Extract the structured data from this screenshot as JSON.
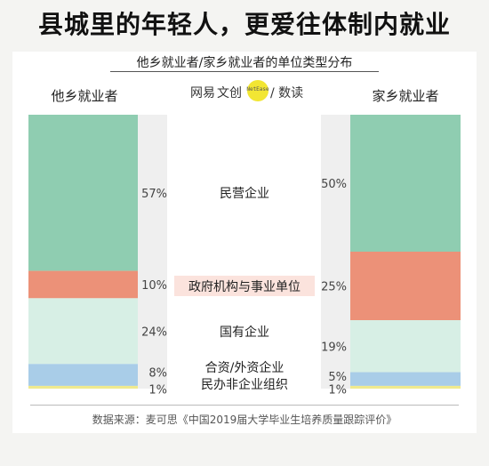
{
  "title": "县城里的年轻人，更爱往体制内就业",
  "chart_data": {
    "type": "bar",
    "title": "他乡就业者/家乡就业者的单位类型分布",
    "categories": [
      "民营企业",
      "政府机构与事业单位",
      "国有企业",
      "合资/外资企业",
      "民办非企业组织"
    ],
    "series": [
      {
        "name": "他乡就业者",
        "values": [
          57,
          10,
          24,
          8,
          1
        ]
      },
      {
        "name": "家乡就业者",
        "values": [
          50,
          25,
          19,
          5,
          1
        ]
      }
    ],
    "value_labels": {
      "他乡就业者": [
        "57%",
        "10%",
        "24%",
        "8%",
        "1%"
      ],
      "家乡就业者": [
        "50%",
        "25%",
        "19%",
        "5%",
        "1%"
      ]
    },
    "colors": [
      "#8fcdb1",
      "#ec9178",
      "#d7efe5",
      "#a9cde8",
      "#f0ea8e"
    ],
    "highlight_category": "政府机构与事业单位",
    "highlight_color": "#fbe3dd",
    "ylim": [
      0,
      100
    ]
  },
  "logo": {
    "left_text": "网易",
    "mid_text": "文创",
    "dot_text": "NetEase",
    "right_text": "/ 数读"
  },
  "source": "数据来源：麦可思《中国2019届大学毕业生培养质量跟踪评价》"
}
